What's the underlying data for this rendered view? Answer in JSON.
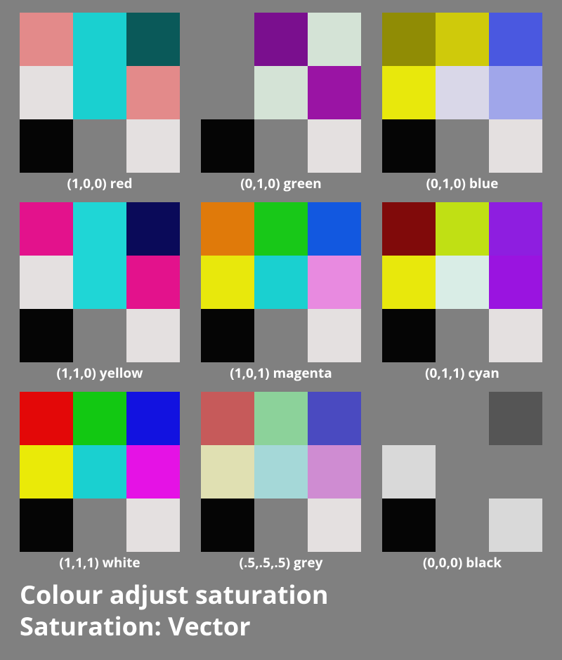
{
  "background_color": "#808080",
  "text_color": "#ffffff",
  "caption_fontsize": 19,
  "title_fontsize": 36,
  "title_line1": "Colour adjust saturation",
  "title_line2": "Saturation: Vector",
  "swatches": [
    {
      "label": "(1,0,0) red",
      "cells": [
        "#e38a8a",
        "#1ad0d0",
        "#0a5959",
        "#e4e0e0",
        "#1ad0d0",
        "#e38a8a",
        "#050505",
        "#808080",
        "#e4e0e0"
      ]
    },
    {
      "label": "(0,1,0) green",
      "cells": [
        "#808080",
        "#7a0f8e",
        "#d4e3d6",
        "#808080",
        "#d4e3d6",
        "#9a14a4",
        "#050505",
        "#808080",
        "#e4e0e0"
      ]
    },
    {
      "label": "(0,1,0) blue",
      "cells": [
        "#908c05",
        "#cfca0b",
        "#4a58e0",
        "#e8e80c",
        "#d9d7e8",
        "#a0a6ea",
        "#050505",
        "#808080",
        "#e4e0e0"
      ]
    },
    {
      "label": "(1,1,0) yellow",
      "cells": [
        "#e3128c",
        "#1fd6d6",
        "#0a0a59",
        "#e4e0e0",
        "#1fd6d6",
        "#e3128c",
        "#050505",
        "#808080",
        "#e4e0e0"
      ]
    },
    {
      "label": "(1,0,1) magenta",
      "cells": [
        "#e07a0a",
        "#18c818",
        "#1258e0",
        "#e8e80c",
        "#1ad0d0",
        "#e88ae0",
        "#050505",
        "#808080",
        "#e4e0e0"
      ]
    },
    {
      "label": "(0,1,1) cyan",
      "cells": [
        "#800a0a",
        "#c0e014",
        "#8e1ee0",
        "#e8e80c",
        "#d9ede6",
        "#9a14e0",
        "#050505",
        "#808080",
        "#e4e0e0"
      ]
    },
    {
      "label": "(1,1,1) white",
      "cells": [
        "#e30808",
        "#12c812",
        "#1212e0",
        "#eaea08",
        "#1ad0d0",
        "#e512e5",
        "#050505",
        "#808080",
        "#e4e0e0"
      ]
    },
    {
      "label": "(.5,.5,.5) grey",
      "cells": [
        "#c65a5a",
        "#8cd29a",
        "#4a4ac0",
        "#e0e0b2",
        "#a5d8d8",
        "#cf8cd2",
        "#050505",
        "#808080",
        "#e4e0e0"
      ]
    },
    {
      "label": "(0,0,0) black",
      "cells": [
        "#808080",
        "#808080",
        "#555555",
        "#d9d9d9",
        "#808080",
        "#808080",
        "#050505",
        "#808080",
        "#d9d9d9"
      ]
    }
  ]
}
